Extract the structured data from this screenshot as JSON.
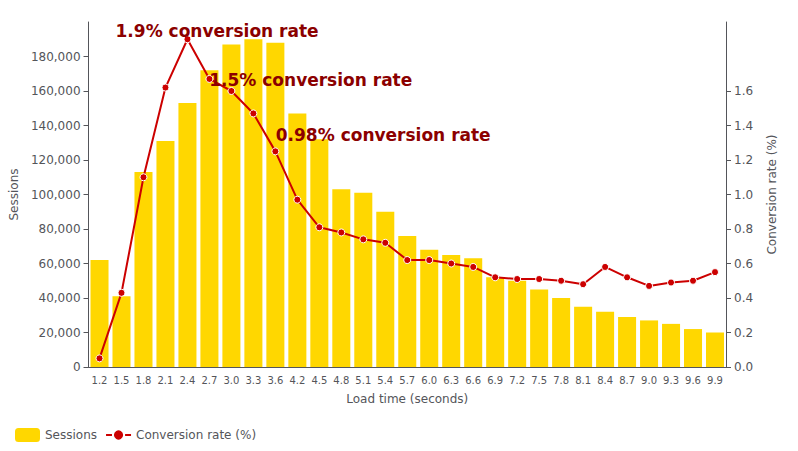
{
  "chart_data": {
    "type": "bar",
    "xlabel": "Load time (seconds)",
    "ylabel": "Sessions",
    "y2label": "Conversion rate (%)",
    "categories": [
      "1.2",
      "1.5",
      "1.8",
      "2.1",
      "2.4",
      "2.7",
      "3.0",
      "3.3",
      "3.6",
      "4.2",
      "4.5",
      "4.8",
      "5.1",
      "5.4",
      "5.7",
      "6.0",
      "6.3",
      "6.6",
      "6.9",
      "7.2",
      "7.5",
      "7.8",
      "8.1",
      "8.4",
      "8.7",
      "9.0",
      "9.3",
      "9.6",
      "9.9"
    ],
    "series": [
      {
        "name": "Sessions",
        "type": "bar",
        "color": "#FFD700",
        "values": [
          62000,
          41000,
          113000,
          131000,
          153000,
          172000,
          187000,
          190000,
          188000,
          147000,
          132000,
          103000,
          101000,
          90000,
          76000,
          68000,
          65000,
          63000,
          52000,
          50000,
          45000,
          40000,
          35000,
          32000,
          29000,
          27000,
          25000,
          22000,
          20000
        ]
      },
      {
        "name": "Conversion rate (%)",
        "type": "line",
        "axis": "y2",
        "color": "#CC0000",
        "marker": "circle",
        "values": [
          0.05,
          0.43,
          1.1,
          1.62,
          1.9,
          1.67,
          1.6,
          1.47,
          1.25,
          0.97,
          0.81,
          0.78,
          0.74,
          0.72,
          0.62,
          0.62,
          0.6,
          0.58,
          0.52,
          0.51,
          0.51,
          0.5,
          0.48,
          0.58,
          0.52,
          0.47,
          0.49,
          0.5,
          0.55
        ]
      }
    ],
    "ylim": [
      0,
      200000
    ],
    "yticks": [
      0,
      {
        "value": 20000,
        "label": "20,000"
      },
      {
        "value": 40000,
        "label": "40,000"
      },
      {
        "value": 60000,
        "label": "60,000"
      },
      {
        "value": 80000,
        "label": "80,000"
      },
      {
        "value": 100000,
        "label": "100,000"
      },
      {
        "value": 120000,
        "label": "120,000"
      },
      {
        "value": 140000,
        "label": "140,000"
      },
      {
        "value": 160000,
        "label": "160,000"
      },
      {
        "value": 180000,
        "label": "180,000"
      }
    ],
    "y2lim": [
      0.0,
      2.0
    ],
    "y2ticks": [
      {
        "value": 0.0,
        "label": "0.0"
      },
      0.2,
      0.4,
      0.6,
      0.8,
      {
        "value": 1.0,
        "label": "1.0"
      },
      1.2,
      1.4,
      1.6
    ],
    "annotations": [
      {
        "text": "1.9% conversion rate",
        "color": "#8B0000"
      },
      {
        "text": "1.5% conversion rate",
        "color": "#8B0000"
      },
      {
        "text": "0.98% conversion rate",
        "color": "#8B0000"
      }
    ],
    "grid": false,
    "legend": "lower left"
  }
}
